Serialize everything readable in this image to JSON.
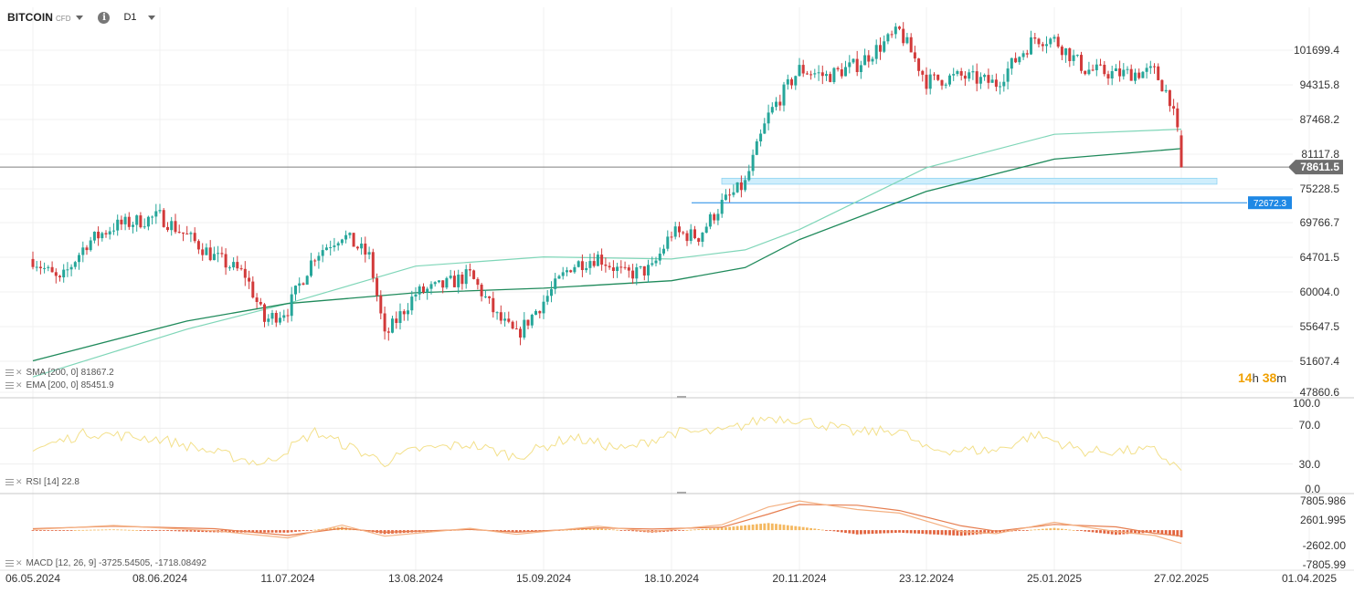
{
  "header": {
    "symbol": "BITCOIN",
    "symbol_tag": "CFD",
    "info_icon": "info-icon",
    "timeframe": "D1"
  },
  "colors": {
    "up": "#26a69a",
    "down": "#d23a3a",
    "sma": "#1f8a5b",
    "ema": "#7fd6b8",
    "rsi": "#f3e08a",
    "macd_line": "#f4b183",
    "signal_line": "#e67e50",
    "hist_pos": "#f4b860",
    "hist_neg": "#e2643f",
    "price_line": "#7f7f7f",
    "hline": "#1e88e5",
    "zone": "#cfeefc",
    "countdown": "#f0a000"
  },
  "legends": {
    "sma": "SMA [200, 0]  81867.2",
    "ema": "EMA [200, 0]  85451.9",
    "rsi": "RSI [14]  22.8",
    "macd": "MACD [12, 26, 9]  -3725.54505,  -1718.08492"
  },
  "countdown": {
    "h": "14",
    "h_unit": "h",
    "m": "38",
    "m_unit": "m"
  },
  "chart_data": [
    {
      "type": "candlestick",
      "title": "BITCOIN CFD D1",
      "x_tick_labels": [
        "06.05.2024",
        "08.06.2024",
        "11.07.2024",
        "13.08.2024",
        "15.09.2024",
        "18.10.2024",
        "20.11.2024",
        "23.12.2024",
        "25.01.2025",
        "27.02.2025",
        "01.04.2025"
      ],
      "y_tick_labels": [
        "101699.4",
        "94315.8",
        "87468.2",
        "81117.8",
        "75228.5",
        "69766.7",
        "64701.5",
        "60004.0",
        "55647.5",
        "51607.4",
        "47860.6"
      ],
      "y_scale": "log",
      "last_price": 78611.5,
      "last_price_label": "78611.5",
      "horizontal_line": {
        "value": 72672.3,
        "label": "72672.3"
      },
      "support_zone": [
        75700,
        76700
      ],
      "close_path": [
        [
          "06.05.2024",
          64200
        ],
        [
          "13.05.2024",
          61000
        ],
        [
          "20.05.2024",
          66500
        ],
        [
          "27.05.2024",
          69000
        ],
        [
          "08.06.2024",
          70500
        ],
        [
          "15.06.2024",
          67500
        ],
        [
          "22.06.2024",
          64500
        ],
        [
          "30.06.2024",
          62000
        ],
        [
          "05.07.2024",
          56000
        ],
        [
          "11.07.2024",
          57500
        ],
        [
          "18.07.2024",
          64800
        ],
        [
          "25.07.2024",
          67800
        ],
        [
          "01.08.2024",
          64500
        ],
        [
          "05.08.2024",
          54000
        ],
        [
          "13.08.2024",
          59500
        ],
        [
          "20.08.2024",
          60500
        ],
        [
          "27.08.2024",
          62000
        ],
        [
          "03.09.2024",
          56500
        ],
        [
          "08.09.2024",
          54200
        ],
        [
          "15.09.2024",
          58500
        ],
        [
          "22.09.2024",
          63200
        ],
        [
          "29.09.2024",
          64500
        ],
        [
          "06.10.2024",
          62000
        ],
        [
          "13.10.2024",
          62800
        ],
        [
          "18.10.2024",
          68000
        ],
        [
          "25.10.2024",
          67500
        ],
        [
          "31.10.2024",
          72500
        ],
        [
          "06.11.2024",
          75800
        ],
        [
          "12.11.2024",
          88000
        ],
        [
          "20.11.2024",
          97500
        ],
        [
          "27.11.2024",
          96000
        ],
        [
          "05.12.2024",
          98500
        ],
        [
          "16.12.2024",
          106000
        ],
        [
          "23.12.2024",
          95000
        ],
        [
          "01.01.2025",
          96000
        ],
        [
          "10.01.2025",
          94500
        ],
        [
          "20.01.2025",
          104500
        ],
        [
          "25.01.2025",
          104000
        ],
        [
          "02.02.2025",
          97500
        ],
        [
          "10.02.2025",
          96500
        ],
        [
          "20.02.2025",
          97000
        ],
        [
          "24.02.2025",
          91500
        ],
        [
          "26.02.2025",
          84500
        ],
        [
          "27.02.2025",
          78611.5
        ]
      ],
      "sma_200": [
        [
          "06.05.2024",
          51300
        ],
        [
          "15.06.2024",
          56000
        ],
        [
          "11.07.2024",
          58200
        ],
        [
          "13.08.2024",
          59600
        ],
        [
          "15.09.2024",
          60200
        ],
        [
          "18.10.2024",
          61200
        ],
        [
          "06.11.2024",
          63000
        ],
        [
          "20.11.2024",
          67000
        ],
        [
          "23.12.2024",
          74500
        ],
        [
          "25.01.2025",
          80000
        ],
        [
          "27.02.2025",
          81867.2
        ]
      ],
      "ema_200": [
        [
          "06.05.2024",
          49500
        ],
        [
          "15.06.2024",
          55000
        ],
        [
          "11.07.2024",
          58200
        ],
        [
          "13.08.2024",
          63200
        ],
        [
          "15.09.2024",
          64500
        ],
        [
          "18.10.2024",
          64200
        ],
        [
          "06.11.2024",
          65500
        ],
        [
          "20.11.2024",
          68500
        ],
        [
          "23.12.2024",
          78500
        ],
        [
          "25.01.2025",
          84500
        ],
        [
          "27.02.2025",
          85451.9
        ]
      ]
    },
    {
      "type": "line",
      "title": "RSI [14]",
      "y_tick_labels": [
        "100.0",
        "70.0",
        "30.0",
        "0.0"
      ],
      "ylim": [
        0,
        100
      ],
      "series": [
        {
          "name": "RSI [14]",
          "values": [
            [
              "06.05.2024",
              46
            ],
            [
              "20.05.2024",
              65
            ],
            [
              "08.06.2024",
              58
            ],
            [
              "22.06.2024",
              43
            ],
            [
              "05.07.2024",
              30
            ],
            [
              "18.07.2024",
              66
            ],
            [
              "05.08.2024",
              32
            ],
            [
              "13.08.2024",
              46
            ],
            [
              "27.08.2024",
              52
            ],
            [
              "08.09.2024",
              38
            ],
            [
              "22.09.2024",
              60
            ],
            [
              "06.10.2024",
              46
            ],
            [
              "18.10.2024",
              65
            ],
            [
              "31.10.2024",
              66
            ],
            [
              "12.11.2024",
              82
            ],
            [
              "20.11.2024",
              80
            ],
            [
              "05.12.2024",
              65
            ],
            [
              "16.12.2024",
              68
            ],
            [
              "23.12.2024",
              46
            ],
            [
              "10.01.2025",
              45
            ],
            [
              "20.01.2025",
              63
            ],
            [
              "02.02.2025",
              44
            ],
            [
              "20.02.2025",
              45
            ],
            [
              "27.02.2025",
              22.8
            ]
          ]
        }
      ]
    },
    {
      "type": "line+bar",
      "title": "MACD [12, 26, 9]",
      "y_tick_labels": [
        "7805.986",
        "2601.995",
        "-2602.00",
        "-7805.99"
      ],
      "ylim": [
        -10000,
        9000
      ],
      "macd_line": [
        [
          "06.05.2024",
          200
        ],
        [
          "27.05.2024",
          1300
        ],
        [
          "22.06.2024",
          -200
        ],
        [
          "11.07.2024",
          -2200
        ],
        [
          "25.07.2024",
          1400
        ],
        [
          "05.08.2024",
          -1700
        ],
        [
          "27.08.2024",
          500
        ],
        [
          "08.09.2024",
          -1200
        ],
        [
          "29.09.2024",
          1100
        ],
        [
          "13.10.2024",
          -400
        ],
        [
          "31.10.2024",
          1500
        ],
        [
          "12.11.2024",
          6500
        ],
        [
          "20.11.2024",
          8200
        ],
        [
          "05.12.2024",
          5800
        ],
        [
          "16.12.2024",
          4800
        ],
        [
          "01.01.2025",
          -400
        ],
        [
          "10.01.2025",
          -1000
        ],
        [
          "25.01.2025",
          2200
        ],
        [
          "10.02.2025",
          -400
        ],
        [
          "20.02.2025",
          -1500
        ],
        [
          "27.02.2025",
          -3725.54505
        ]
      ],
      "signal_line": [
        [
          "06.05.2024",
          400
        ],
        [
          "27.05.2024",
          1100
        ],
        [
          "22.06.2024",
          400
        ],
        [
          "11.07.2024",
          -1500
        ],
        [
          "25.07.2024",
          500
        ],
        [
          "05.08.2024",
          -600
        ],
        [
          "27.08.2024",
          200
        ],
        [
          "08.09.2024",
          -600
        ],
        [
          "29.09.2024",
          600
        ],
        [
          "13.10.2024",
          300
        ],
        [
          "31.10.2024",
          800
        ],
        [
          "12.11.2024",
          4500
        ],
        [
          "20.11.2024",
          7200
        ],
        [
          "05.12.2024",
          7000
        ],
        [
          "16.12.2024",
          5500
        ],
        [
          "01.01.2025",
          1200
        ],
        [
          "10.01.2025",
          -300
        ],
        [
          "25.01.2025",
          1600
        ],
        [
          "10.02.2025",
          900
        ],
        [
          "20.02.2025",
          -900
        ],
        [
          "27.02.2025",
          -1718.08492
        ]
      ]
    }
  ]
}
